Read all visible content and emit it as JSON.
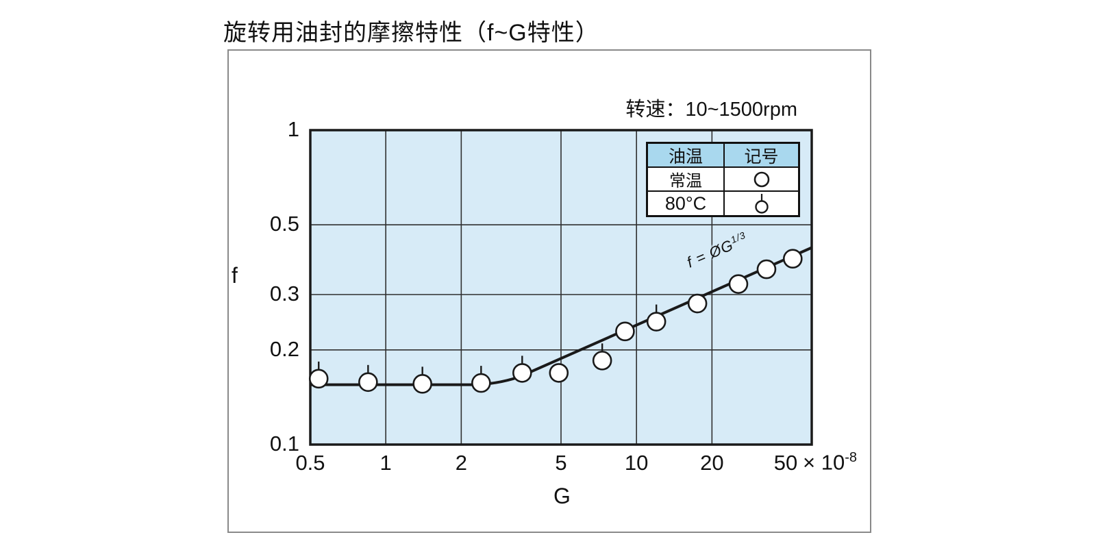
{
  "title": "旋转用油封的摩擦特性（f~G特性）",
  "annotation": {
    "speed": "转速：10~1500rpm"
  },
  "legend": {
    "headers": [
      "油温",
      "记号"
    ],
    "rows": [
      {
        "label": "常温",
        "symbol": "open-circle"
      },
      {
        "label": "80°C",
        "symbol": "open-circle-tick"
      }
    ]
  },
  "axes": {
    "x": {
      "label": "G",
      "multiplier_base": "× 10",
      "multiplier_exp": "-8"
    },
    "y": {
      "label": "f"
    }
  },
  "colors": {
    "plot_bg": "#d7ebf7",
    "legend_header_bg": "#a9d8ee",
    "ink": "#1a1a1a",
    "grid_line": "#2f2f2f",
    "frame": "#898989",
    "text": "#111111"
  },
  "chart_data": {
    "type": "scatter",
    "title": "旋转用油封的摩擦特性（f~G特性）",
    "xlabel": "G",
    "ylabel": "f",
    "x_scale": "log",
    "y_scale": "log",
    "xlim": [
      0.5,
      50
    ],
    "ylim": [
      0.1,
      1
    ],
    "x_unit": "×10⁻⁸",
    "x_ticks": [
      0.5,
      1,
      2,
      5,
      10,
      20,
      50
    ],
    "y_ticks": [
      1,
      0.5,
      0.3,
      0.2,
      0.1
    ],
    "x_gridlines": [
      1,
      2,
      5,
      10,
      20
    ],
    "y_gridlines": [
      0.5,
      0.3,
      0.2
    ],
    "grid": true,
    "legend_position": "top-right-inside",
    "annotation": "转速：10~1500rpm",
    "series": [
      {
        "name": "常温",
        "symbol": "open-circle",
        "points": [
          [
            4.9,
            0.169
          ],
          [
            9.0,
            0.229
          ],
          [
            17.5,
            0.281
          ],
          [
            25.5,
            0.324
          ],
          [
            33,
            0.361
          ],
          [
            42,
            0.39
          ]
        ]
      },
      {
        "name": "80°C",
        "symbol": "open-circle-tick",
        "points": [
          [
            0.54,
            0.162
          ],
          [
            0.85,
            0.158
          ],
          [
            1.4,
            0.156
          ],
          [
            2.4,
            0.157
          ],
          [
            3.5,
            0.169
          ],
          [
            7.3,
            0.185
          ],
          [
            12,
            0.246
          ]
        ]
      }
    ],
    "trend_curve": {
      "label": "f = ØG^(1/3)",
      "label_base": "f = ØG",
      "label_exp": "1/3",
      "flat_level_f": 0.155,
      "anchors": [
        [
          0.5,
          0.155
        ],
        [
          2.2,
          0.155
        ],
        [
          3.4,
          0.164
        ],
        [
          50,
          0.423
        ]
      ]
    }
  }
}
